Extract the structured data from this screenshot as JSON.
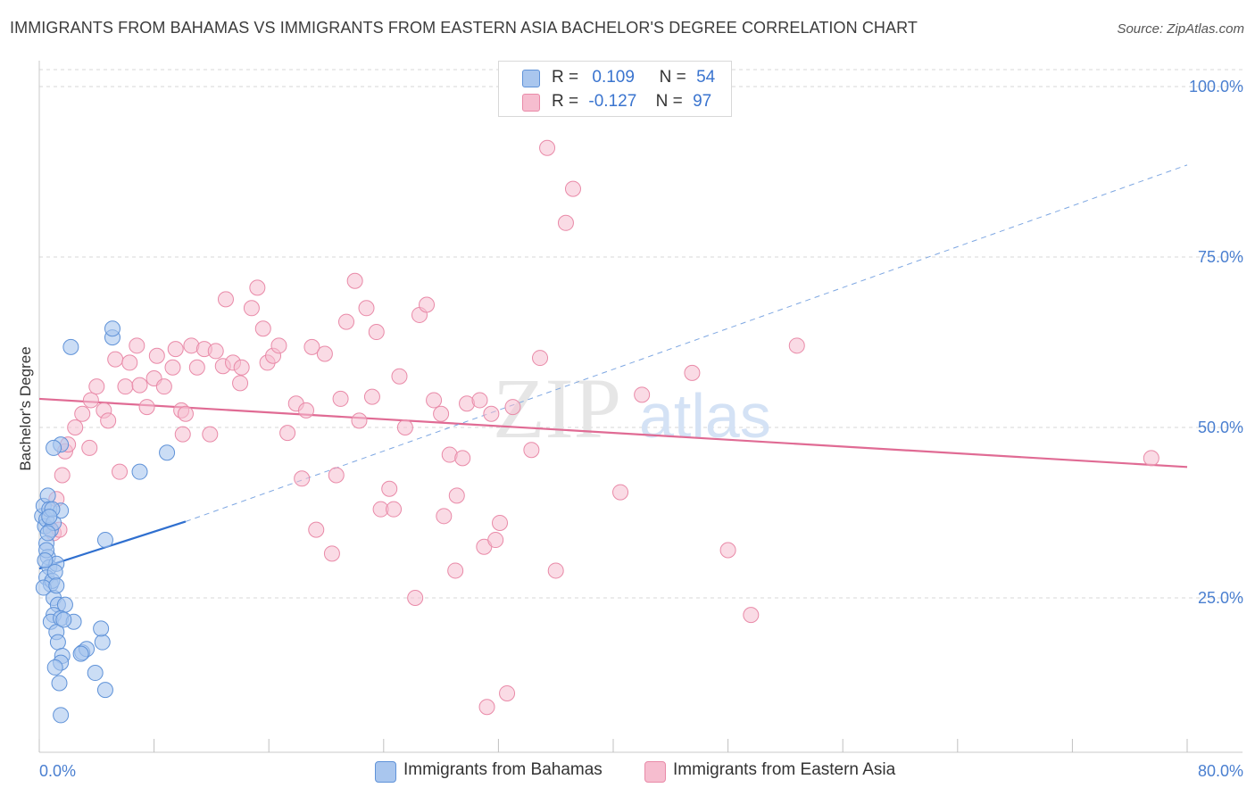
{
  "title": "IMMIGRANTS FROM BAHAMAS VS IMMIGRANTS FROM EASTERN ASIA BACHELOR'S DEGREE CORRELATION CHART",
  "source": "Source: ZipAtlas.com",
  "watermark": {
    "zip": "ZIP",
    "atlas": "atlas"
  },
  "legend": {
    "rows": [
      {
        "r_label": "R =",
        "r_value": "0.109",
        "n_label": "N =",
        "n_value": "54"
      },
      {
        "r_label": "R =",
        "r_value": "-0.127",
        "n_label": "N =",
        "n_value": "97"
      }
    ]
  },
  "colors": {
    "blue_fill": "#a9c6ee",
    "blue_stroke": "#5f92d8",
    "blue_line": "#2f6fcf",
    "pink_fill": "#f6bdcf",
    "pink_stroke": "#e98aa8",
    "pink_line": "#e06b94",
    "grid": "#d7d7d7",
    "tick_text": "#4a7fd0"
  },
  "chart_data": {
    "type": "scatter",
    "title": "IMMIGRANTS FROM BAHAMAS VS IMMIGRANTS FROM EASTERN ASIA BACHELOR'S DEGREE CORRELATION CHART",
    "xlabel": "",
    "ylabel": "Bachelor's Degree",
    "xlim": [
      0,
      80
    ],
    "ylim": [
      0,
      103
    ],
    "x_tick_labels": [
      "0.0%",
      "80.0%"
    ],
    "y_ticks": [
      25,
      50,
      75,
      100
    ],
    "y_tick_labels": [
      "25.0%",
      "50.0%",
      "75.0%",
      "100.0%"
    ],
    "legend_position": "bottom",
    "series": [
      {
        "name": "Immigrants from Bahamas",
        "color": "#a9c6ee",
        "r": 0.109,
        "n": 54,
        "trend": {
          "x_solid": [
            0,
            10.2
          ],
          "y_solid": [
            29.3,
            36.2
          ],
          "x_dash": [
            10.2,
            80
          ],
          "y_dash": [
            36.2,
            88.5
          ]
        },
        "points": [
          [
            0.2,
            37
          ],
          [
            0.3,
            38.5
          ],
          [
            0.4,
            35.5
          ],
          [
            0.5,
            36.5
          ],
          [
            0.6,
            40
          ],
          [
            0.7,
            38
          ],
          [
            0.8,
            35
          ],
          [
            1.0,
            36
          ],
          [
            1.5,
            37.8
          ],
          [
            0.5,
            33
          ],
          [
            0.6,
            31
          ],
          [
            0.7,
            29.5
          ],
          [
            0.5,
            28
          ],
          [
            0.8,
            27
          ],
          [
            1.2,
            30
          ],
          [
            0.5,
            32
          ],
          [
            0.9,
            27.5
          ],
          [
            1.0,
            25
          ],
          [
            1.3,
            24
          ],
          [
            1.8,
            24
          ],
          [
            1.0,
            22.5
          ],
          [
            0.8,
            21.5
          ],
          [
            1.5,
            22
          ],
          [
            2.4,
            21.5
          ],
          [
            1.2,
            20
          ],
          [
            1.3,
            18.5
          ],
          [
            1.6,
            16.5
          ],
          [
            1.5,
            15.5
          ],
          [
            1.1,
            14.8
          ],
          [
            1.4,
            12.5
          ],
          [
            1.5,
            7.8
          ],
          [
            3.0,
            17
          ],
          [
            3.3,
            17.5
          ],
          [
            4.4,
            18.5
          ],
          [
            4.3,
            20.5
          ],
          [
            3.9,
            14
          ],
          [
            4.6,
            11.5
          ],
          [
            4.6,
            33.5
          ],
          [
            1.5,
            47.5
          ],
          [
            1.0,
            47
          ],
          [
            7.0,
            43.5
          ],
          [
            8.9,
            46.3
          ],
          [
            2.2,
            61.8
          ],
          [
            5.1,
            63.2
          ],
          [
            5.1,
            64.5
          ],
          [
            0.3,
            26.5
          ],
          [
            1.1,
            28.8
          ],
          [
            0.6,
            34.5
          ],
          [
            0.9,
            38
          ],
          [
            0.4,
            30.5
          ],
          [
            1.7,
            21.8
          ],
          [
            2.9,
            16.8
          ],
          [
            1.2,
            26.8
          ],
          [
            0.7,
            36.9
          ]
        ]
      },
      {
        "name": "Immigrants from Eastern Asia",
        "color": "#f6bdcf",
        "r": -0.127,
        "n": 97,
        "trend": {
          "x": [
            0,
            80
          ],
          "y": [
            54.2,
            44.2
          ]
        },
        "points": [
          [
            1.0,
            34.5
          ],
          [
            1.2,
            39.5
          ],
          [
            1.4,
            35
          ],
          [
            1.6,
            43
          ],
          [
            1.8,
            46.5
          ],
          [
            2.0,
            47.5
          ],
          [
            2.5,
            50
          ],
          [
            3.0,
            52
          ],
          [
            3.5,
            47
          ],
          [
            3.6,
            54
          ],
          [
            4.0,
            56
          ],
          [
            4.5,
            52.5
          ],
          [
            4.8,
            51
          ],
          [
            5.3,
            60
          ],
          [
            5.6,
            43.5
          ],
          [
            6.0,
            56
          ],
          [
            6.3,
            59.5
          ],
          [
            6.8,
            62
          ],
          [
            7.0,
            56.2
          ],
          [
            7.5,
            53
          ],
          [
            8.0,
            57.2
          ],
          [
            8.2,
            60.5
          ],
          [
            8.7,
            56
          ],
          [
            9.3,
            58.8
          ],
          [
            9.5,
            61.5
          ],
          [
            9.9,
            52.5
          ],
          [
            10.0,
            49
          ],
          [
            10.2,
            52
          ],
          [
            10.6,
            62
          ],
          [
            11.0,
            58.8
          ],
          [
            11.5,
            61.5
          ],
          [
            11.9,
            49
          ],
          [
            12.3,
            61.2
          ],
          [
            12.8,
            59
          ],
          [
            13.0,
            68.8
          ],
          [
            13.5,
            59.5
          ],
          [
            14.0,
            56.5
          ],
          [
            14.1,
            58.8
          ],
          [
            14.8,
            67.5
          ],
          [
            15.2,
            70.5
          ],
          [
            15.6,
            64.5
          ],
          [
            15.9,
            59.5
          ],
          [
            16.3,
            60.5
          ],
          [
            16.7,
            62
          ],
          [
            17.3,
            49.2
          ],
          [
            17.9,
            53.5
          ],
          [
            18.3,
            42.5
          ],
          [
            18.6,
            52.5
          ],
          [
            19.0,
            61.8
          ],
          [
            19.3,
            35
          ],
          [
            19.9,
            60.8
          ],
          [
            20.4,
            31.5
          ],
          [
            20.7,
            43
          ],
          [
            21.0,
            54.2
          ],
          [
            21.4,
            65.5
          ],
          [
            22.0,
            71.5
          ],
          [
            22.3,
            51
          ],
          [
            22.8,
            67.5
          ],
          [
            23.2,
            54.5
          ],
          [
            23.5,
            64
          ],
          [
            23.8,
            38
          ],
          [
            24.4,
            41
          ],
          [
            24.7,
            38
          ],
          [
            25.1,
            57.5
          ],
          [
            25.5,
            50
          ],
          [
            26.2,
            25
          ],
          [
            26.5,
            66.5
          ],
          [
            27.0,
            68
          ],
          [
            27.5,
            54
          ],
          [
            28.0,
            52
          ],
          [
            28.2,
            37
          ],
          [
            28.6,
            46
          ],
          [
            29.0,
            29
          ],
          [
            29.1,
            40
          ],
          [
            29.5,
            45.5
          ],
          [
            29.8,
            53.5
          ],
          [
            30.7,
            54
          ],
          [
            31.0,
            32.5
          ],
          [
            31.2,
            9
          ],
          [
            31.5,
            52
          ],
          [
            31.8,
            33.5
          ],
          [
            32.1,
            36
          ],
          [
            32.6,
            11
          ],
          [
            33.0,
            53
          ],
          [
            34.3,
            46.7
          ],
          [
            34.9,
            60.2
          ],
          [
            35.4,
            91
          ],
          [
            36.0,
            29
          ],
          [
            36.7,
            80
          ],
          [
            37.2,
            85
          ],
          [
            40.5,
            40.5
          ],
          [
            42.0,
            54.8
          ],
          [
            45.5,
            58
          ],
          [
            48.0,
            32
          ],
          [
            49.6,
            22.5
          ],
          [
            52.8,
            62
          ],
          [
            77.5,
            45.5
          ]
        ]
      }
    ]
  },
  "bottom_legend": [
    {
      "label": "Immigrants from Bahamas"
    },
    {
      "label": "Immigrants from Eastern Asia"
    }
  ]
}
